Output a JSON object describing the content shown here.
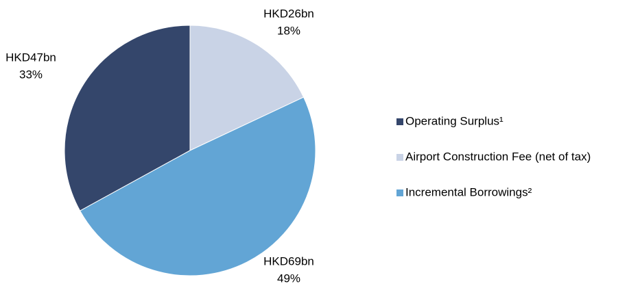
{
  "chart_data": {
    "type": "pie",
    "categories": [
      "Operating Surplus¹",
      "Airport Construction Fee (net of tax)",
      "Incremental Borrowings²"
    ],
    "values": [
      33,
      18,
      49
    ],
    "value_labels": [
      "33%",
      "18%",
      "49%"
    ],
    "amounts": [
      47,
      26,
      69
    ],
    "amount_labels": [
      "HKD47bn",
      "HKD26bn",
      "HKD69bn"
    ],
    "colors": [
      "#34466b",
      "#c9d3e6",
      "#62a5d5"
    ],
    "legend": "right"
  }
}
